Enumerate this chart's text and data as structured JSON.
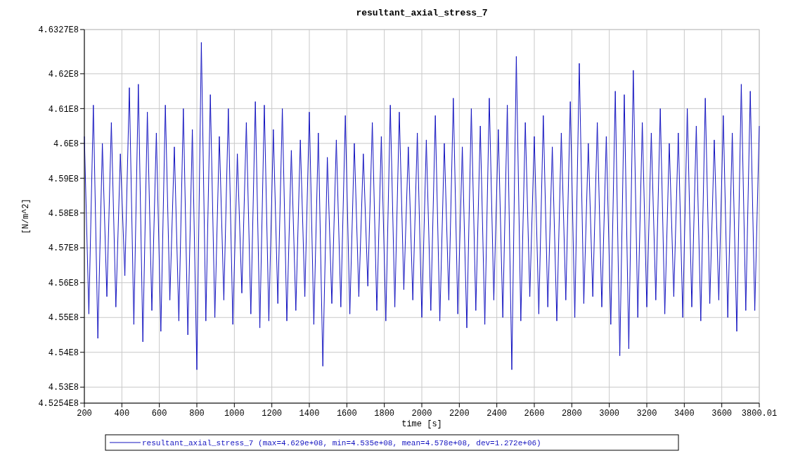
{
  "chart_data": {
    "type": "line",
    "title": "resultant_axial_stress_7",
    "xlabel": "time [s]",
    "ylabel": "[N/m^2]",
    "xlim": [
      200,
      3800.01
    ],
    "xticks": [
      200,
      400,
      600,
      800,
      1000,
      1200,
      1400,
      1600,
      1800,
      2000,
      2200,
      2400,
      2600,
      2800,
      3000,
      3200,
      3400,
      3600,
      3800.01
    ],
    "ylim": [
      452540000,
      463270000
    ],
    "yticks": [
      {
        "value": 452540000,
        "label": "4.5254E8"
      },
      {
        "value": 453000000,
        "label": "4.53E8"
      },
      {
        "value": 454000000,
        "label": "4.54E8"
      },
      {
        "value": 455000000,
        "label": "4.55E8"
      },
      {
        "value": 456000000,
        "label": "4.56E8"
      },
      {
        "value": 457000000,
        "label": "4.57E8"
      },
      {
        "value": 458000000,
        "label": "4.58E8"
      },
      {
        "value": 459000000,
        "label": "4.59E8"
      },
      {
        "value": 460000000,
        "label": "4.6E8"
      },
      {
        "value": 461000000,
        "label": "4.61E8"
      },
      {
        "value": 462000000,
        "label": "4.62E8"
      },
      {
        "value": 463270000,
        "label": "4.6327E8"
      }
    ],
    "grid": true,
    "legend": "bottom",
    "line_style": "solid",
    "x": [
      200,
      224,
      248,
      272,
      296,
      320,
      344,
      368,
      392,
      416,
      440,
      464,
      488,
      512,
      536,
      560,
      584,
      608,
      632,
      656,
      680,
      704,
      728,
      752,
      776,
      800,
      824,
      848,
      872,
      896,
      920,
      944,
      968,
      992,
      1016,
      1040,
      1064,
      1088,
      1112,
      1136,
      1160,
      1184,
      1208,
      1232,
      1256,
      1280,
      1304,
      1328,
      1352,
      1376,
      1400,
      1424,
      1448,
      1472,
      1496,
      1520,
      1544,
      1568,
      1592,
      1616,
      1640,
      1664,
      1688,
      1712,
      1736,
      1760,
      1784,
      1808,
      1832,
      1856,
      1880,
      1904,
      1928,
      1952,
      1976,
      2000,
      2024,
      2048,
      2072,
      2096,
      2120,
      2144,
      2168,
      2192,
      2216,
      2240,
      2264,
      2288,
      2312,
      2336,
      2360,
      2384,
      2408,
      2432,
      2456,
      2480,
      2504,
      2528,
      2552,
      2576,
      2600,
      2624,
      2648,
      2672,
      2696,
      2720,
      2744,
      2768,
      2792,
      2816,
      2840,
      2864,
      2888,
      2912,
      2936,
      2960,
      2984,
      3008,
      3032,
      3056,
      3080,
      3104,
      3128,
      3152,
      3176,
      3200,
      3224,
      3248,
      3272,
      3296,
      3320,
      3344,
      3368,
      3392,
      3416,
      3440,
      3464,
      3488,
      3512,
      3536,
      3560,
      3584,
      3608,
      3632,
      3656,
      3680,
      3704,
      3728,
      3752,
      3776,
      3800
    ],
    "series": [
      {
        "name": "resultant_axial_stress_7 (max=4.629e+08, min=4.535e+08, mean=4.578e+08, dev=1.272e+06)",
        "color": "#1414c0",
        "values": [
          460200000,
          455100000,
          461100000,
          454400000,
          460000000,
          455600000,
          460600000,
          455300000,
          459700000,
          456200000,
          461600000,
          454800000,
          461700000,
          454300000,
          460900000,
          455200000,
          460300000,
          454600000,
          461100000,
          455500000,
          459900000,
          454900000,
          461000000,
          454500000,
          460400000,
          453500000,
          462900000,
          454900000,
          461400000,
          455000000,
          460200000,
          455500000,
          461000000,
          454800000,
          459700000,
          455700000,
          460600000,
          455100000,
          461200000,
          454700000,
          461100000,
          454900000,
          460400000,
          455400000,
          461000000,
          454900000,
          459800000,
          455200000,
          460100000,
          455600000,
          460900000,
          454800000,
          460300000,
          453600000,
          459600000,
          455400000,
          460100000,
          455300000,
          460800000,
          455100000,
          460000000,
          455600000,
          459700000,
          455900000,
          460600000,
          455200000,
          460200000,
          454900000,
          461100000,
          455300000,
          460900000,
          455800000,
          459900000,
          455500000,
          460300000,
          455000000,
          460100000,
          455200000,
          460800000,
          454900000,
          460000000,
          455500000,
          461300000,
          455100000,
          459900000,
          454700000,
          461000000,
          455200000,
          460500000,
          454800000,
          461300000,
          455500000,
          460400000,
          455000000,
          461100000,
          453500000,
          462500000,
          454900000,
          460600000,
          455600000,
          460200000,
          455100000,
          460800000,
          455300000,
          459900000,
          454900000,
          460300000,
          455500000,
          461200000,
          455000000,
          462300000,
          455400000,
          460000000,
          455600000,
          460600000,
          455300000,
          460200000,
          454800000,
          461500000,
          453900000,
          461400000,
          454100000,
          462100000,
          455000000,
          460600000,
          455300000,
          460300000,
          455500000,
          461000000,
          455100000,
          460000000,
          455600000,
          460300000,
          455000000,
          461000000,
          455300000,
          460500000,
          454900000,
          461300000,
          455400000,
          460100000,
          455500000,
          460800000,
          455000000,
          460300000,
          454600000,
          461700000,
          455200000,
          461500000,
          455200000,
          460500000
        ]
      }
    ]
  }
}
